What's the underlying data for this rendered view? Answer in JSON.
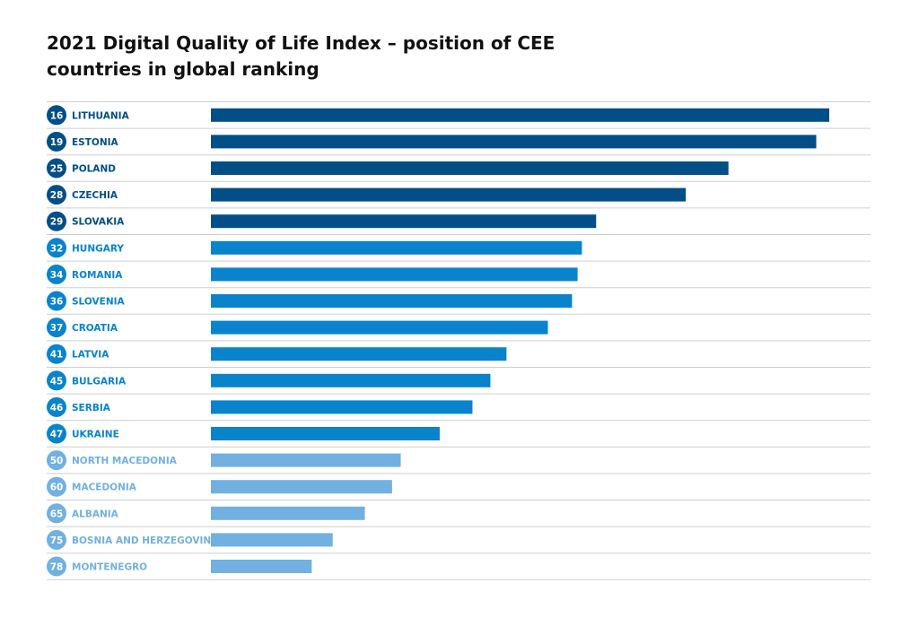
{
  "title": {
    "line1": "2021 Digital Quality of Life Index – position of CEE",
    "line2": "countries in global ranking"
  },
  "colors": {
    "dark": "#024E86",
    "medium": "#0983CC",
    "light": "#71B0E1",
    "grid": "#CFCFCF"
  },
  "chart_data": {
    "type": "bar",
    "orientation": "horizontal",
    "title": "2021 Digital Quality of Life Index – position of CEE countries in global ranking",
    "xlabel": "",
    "ylabel": "",
    "grid": "horizontal separators",
    "categories": [
      "LITHUANIA",
      "ESTONIA",
      "POLAND",
      "CZECHIA",
      "SLOVAKIA",
      "HUNGARY",
      "ROMANIA",
      "SLOVENIA",
      "CROATIA",
      "LATVIA",
      "BULGARIA",
      "SERBIA",
      "UKRAINE",
      "NORTH MACEDONIA",
      "MACEDONIA",
      "ALBANIA",
      "BOSNIA AND HERZEGOVINA",
      "MONTENEGRO"
    ],
    "ranks": [
      16,
      19,
      25,
      28,
      29,
      32,
      34,
      36,
      37,
      41,
      45,
      46,
      47,
      50,
      60,
      65,
      75,
      78
    ],
    "values": [
      1.0,
      0.979,
      0.837,
      0.768,
      0.623,
      0.6,
      0.593,
      0.584,
      0.545,
      0.478,
      0.452,
      0.423,
      0.37,
      0.307,
      0.293,
      0.249,
      0.197,
      0.163
    ],
    "tiers": [
      "dark",
      "dark",
      "dark",
      "dark",
      "dark",
      "medium",
      "medium",
      "medium",
      "medium",
      "medium",
      "medium",
      "medium",
      "medium",
      "light",
      "light",
      "light",
      "light",
      "light"
    ],
    "xlim": [
      0,
      1
    ]
  }
}
